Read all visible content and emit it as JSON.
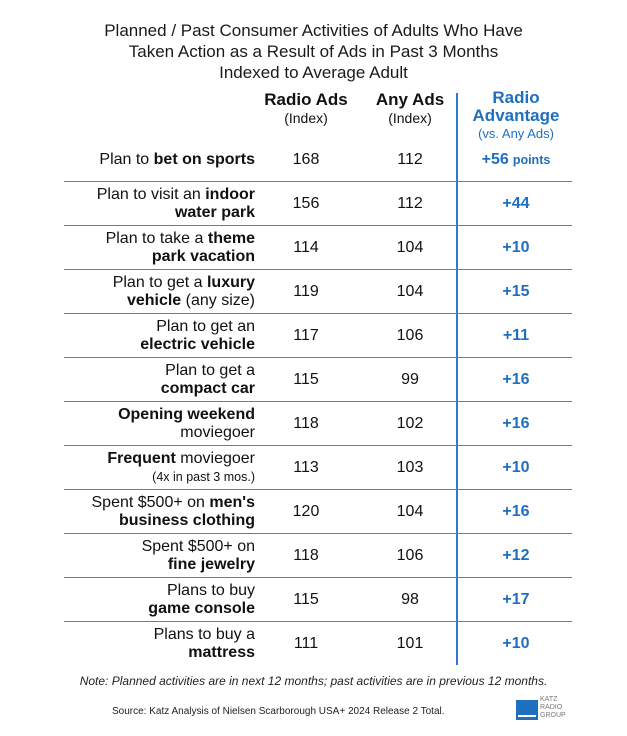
{
  "title": {
    "line1": "Planned / Past Consumer Activities of Adults Who Have",
    "line2": "Taken Action as a Result of Ads in Past 3 Months",
    "line3": "Indexed to Average Adult"
  },
  "columns": {
    "radio": {
      "main": "Radio Ads",
      "sub": "(Index)"
    },
    "any": {
      "main": "Any Ads",
      "sub": "(Index)"
    },
    "adv": {
      "main1": "Radio",
      "main2": "Advantage",
      "sub": "(vs. Any Ads)"
    }
  },
  "chart_data": {
    "type": "table",
    "title": "Planned / Past Consumer Activities of Adults Who Have Taken Action as a Result of Ads in Past 3 Months Indexed to Average Adult",
    "columns": [
      "Radio Ads (Index)",
      "Any Ads (Index)",
      "Radio Advantage (vs. Any Ads)"
    ],
    "rows": [
      {
        "l1a": "Plan to ",
        "l1b": "bet on sports",
        "l2a": "",
        "l2b": "",
        "radio": 168,
        "any": 112,
        "adv": "+56",
        "unit": "points"
      },
      {
        "l1a": "Plan to visit an ",
        "l1b": "indoor",
        "l2a": "",
        "l2b": "water park",
        "radio": 156,
        "any": 112,
        "adv": "+44",
        "unit": ""
      },
      {
        "l1a": "Plan to take a ",
        "l1b": "theme",
        "l2a": "",
        "l2b": "park vacation",
        "radio": 114,
        "any": 104,
        "adv": "+10",
        "unit": ""
      },
      {
        "l1a": "Plan to get a ",
        "l1b": "luxury",
        "l2a": " (any size)",
        "l2b": "vehicle",
        "radio": 119,
        "any": 104,
        "adv": "+15",
        "unit": ""
      },
      {
        "l1a": "Plan to get an",
        "l1b": "",
        "l2a": "",
        "l2b": "electric vehicle",
        "radio": 117,
        "any": 106,
        "adv": "+11",
        "unit": ""
      },
      {
        "l1a": "Plan to get a",
        "l1b": "",
        "l2a": "",
        "l2b": "compact car",
        "radio": 115,
        "any": 99,
        "adv": "+16",
        "unit": ""
      },
      {
        "l1a": "",
        "l1b": "Opening weekend",
        "l2a": "moviegoer",
        "l2b": "",
        "radio": 118,
        "any": 102,
        "adv": "+16",
        "unit": ""
      },
      {
        "l1a": " moviegoer",
        "l1b": "Frequent",
        "l2a": "(4x in past 3 mos.)",
        "l2b": "",
        "radio": 113,
        "any": 103,
        "adv": "+10",
        "unit": "",
        "small2": true
      },
      {
        "l1a": "Spent $500+ on ",
        "l1b": "men's",
        "l2a": "",
        "l2b": "business clothing",
        "radio": 120,
        "any": 104,
        "adv": "+16",
        "unit": ""
      },
      {
        "l1a": "Spent $500+ on",
        "l1b": "",
        "l2a": "",
        "l2b": "fine jewelry",
        "radio": 118,
        "any": 106,
        "adv": "+12",
        "unit": ""
      },
      {
        "l1a": "Plans to buy",
        "l1b": "",
        "l2a": "",
        "l2b": "game console",
        "radio": 115,
        "any": 98,
        "adv": "+17",
        "unit": ""
      },
      {
        "l1a": "Plans to buy a",
        "l1b": "",
        "l2a": "",
        "l2b": "mattress",
        "radio": 111,
        "any": 101,
        "adv": "+10",
        "unit": ""
      }
    ]
  },
  "note": "Note: Planned activities are in next 12 months; past activities are in previous 12 months.",
  "source": "Source: Katz Analysis of Nielsen Scarborough USA+ 2024 Release 2 Total.",
  "logo": {
    "line1": "KATZ",
    "line2": "RADIO",
    "line3": "GROUP"
  },
  "colors": {
    "accent": "#1f6fc0",
    "divider": "#7a7a7a"
  }
}
